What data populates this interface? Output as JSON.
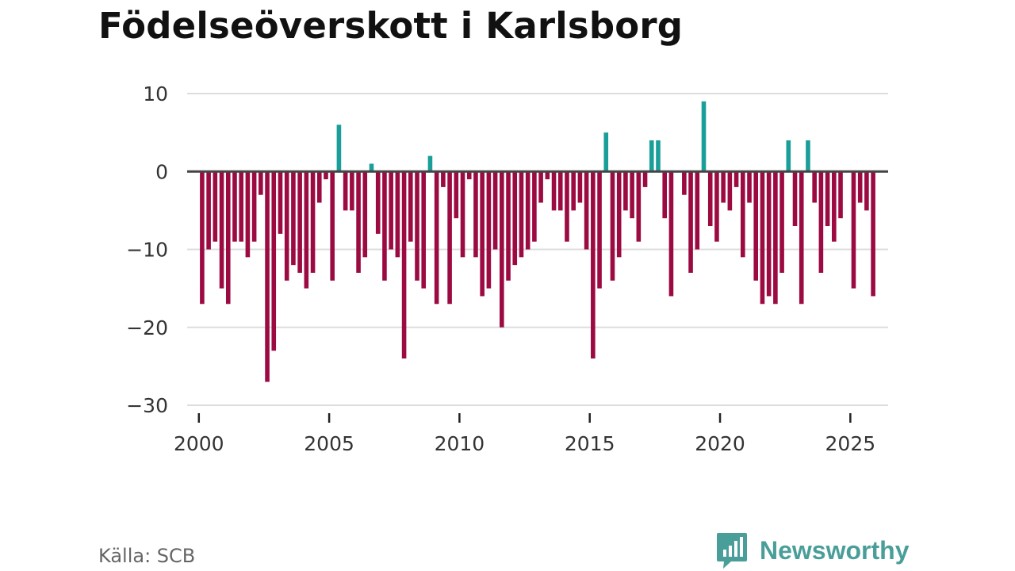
{
  "title": "Födelseöverskott i Karlsborg",
  "source": "Källa: SCB",
  "brand": {
    "name": "Newsworthy",
    "color": "#4a9e9a",
    "icon": "newsworthy-logo-icon"
  },
  "colors": {
    "positive": "#1a9e99",
    "negative": "#9c0a42",
    "grid": "#dddddd",
    "zero": "#444444",
    "text": "#333333"
  },
  "chart_data": {
    "type": "bar",
    "title": "Födelseöverskott i Karlsborg",
    "xlabel": "",
    "ylabel": "",
    "ylim": [
      -30,
      10
    ],
    "xlim": [
      1999.55,
      2026.45
    ],
    "yticks": [
      10,
      0,
      -10,
      -20,
      -30
    ],
    "ytick_labels": [
      "10",
      "0",
      "−10",
      "−20",
      "−30"
    ],
    "xticks": [
      2000,
      2005,
      2010,
      2015,
      2020,
      2025
    ],
    "xtick_labels": [
      "2000",
      "2005",
      "2010",
      "2015",
      "2020",
      "2025"
    ],
    "grid": true,
    "legend": "none",
    "frequency": "quarterly",
    "x": [
      "2000 Q1",
      "2000 Q2",
      "2000 Q3",
      "2000 Q4",
      "2001 Q1",
      "2001 Q2",
      "2001 Q3",
      "2001 Q4",
      "2002 Q1",
      "2002 Q2",
      "2002 Q3",
      "2002 Q4",
      "2003 Q1",
      "2003 Q2",
      "2003 Q3",
      "2003 Q4",
      "2004 Q1",
      "2004 Q2",
      "2004 Q3",
      "2004 Q4",
      "2005 Q1",
      "2005 Q2",
      "2005 Q3",
      "2005 Q4",
      "2006 Q1",
      "2006 Q2",
      "2006 Q3",
      "2006 Q4",
      "2007 Q1",
      "2007 Q2",
      "2007 Q3",
      "2007 Q4",
      "2008 Q1",
      "2008 Q2",
      "2008 Q3",
      "2008 Q4",
      "2009 Q1",
      "2009 Q2",
      "2009 Q3",
      "2009 Q4",
      "2010 Q1",
      "2010 Q2",
      "2010 Q3",
      "2010 Q4",
      "2011 Q1",
      "2011 Q2",
      "2011 Q3",
      "2011 Q4",
      "2012 Q1",
      "2012 Q2",
      "2012 Q3",
      "2012 Q4",
      "2013 Q1",
      "2013 Q2",
      "2013 Q3",
      "2013 Q4",
      "2014 Q1",
      "2014 Q2",
      "2014 Q3",
      "2014 Q4",
      "2015 Q1",
      "2015 Q2",
      "2015 Q3",
      "2015 Q4",
      "2016 Q1",
      "2016 Q2",
      "2016 Q3",
      "2016 Q4",
      "2017 Q1",
      "2017 Q2",
      "2017 Q3",
      "2017 Q4",
      "2018 Q1",
      "2018 Q2",
      "2018 Q3",
      "2018 Q4",
      "2019 Q1",
      "2019 Q2",
      "2019 Q3",
      "2019 Q4",
      "2020 Q1",
      "2020 Q2",
      "2020 Q3",
      "2020 Q4",
      "2021 Q1",
      "2021 Q2",
      "2021 Q3",
      "2021 Q4",
      "2022 Q1",
      "2022 Q2",
      "2022 Q3",
      "2022 Q4",
      "2023 Q1",
      "2023 Q2",
      "2023 Q3",
      "2023 Q4",
      "2024 Q1",
      "2024 Q2",
      "2024 Q3",
      "2024 Q4",
      "2025 Q1",
      "2025 Q2",
      "2025 Q3",
      "2025 Q4"
    ],
    "series": [
      {
        "name": "Födelseöverskott",
        "values": [
          -17,
          -10,
          -9,
          -15,
          -17,
          -9,
          -9,
          -11,
          -9,
          -3,
          -27,
          -23,
          -8,
          -14,
          -12,
          -13,
          -15,
          -13,
          -4,
          -1,
          -14,
          6,
          -5,
          -5,
          -13,
          -11,
          1,
          -8,
          -14,
          -10,
          -11,
          -24,
          -9,
          -14,
          -15,
          2,
          -17,
          -2,
          -17,
          -6,
          -11,
          -1,
          -11,
          -16,
          -15,
          -10,
          -20,
          -14,
          -12,
          -11,
          -10,
          -9,
          -4,
          -1,
          -5,
          -5,
          -9,
          -5,
          -4,
          -10,
          -24,
          -15,
          5,
          -14,
          -11,
          -5,
          -6,
          -9,
          -2,
          4,
          4,
          -6,
          -16,
          0,
          -3,
          -13,
          -10,
          9,
          -7,
          -9,
          -4,
          -5,
          -2,
          -11,
          -4,
          -14,
          -17,
          -16,
          -17,
          -13,
          4,
          -7,
          -17,
          4,
          -4,
          -13,
          -7,
          -9,
          -6,
          0,
          -15,
          -4,
          -5,
          -16
        ]
      }
    ]
  }
}
